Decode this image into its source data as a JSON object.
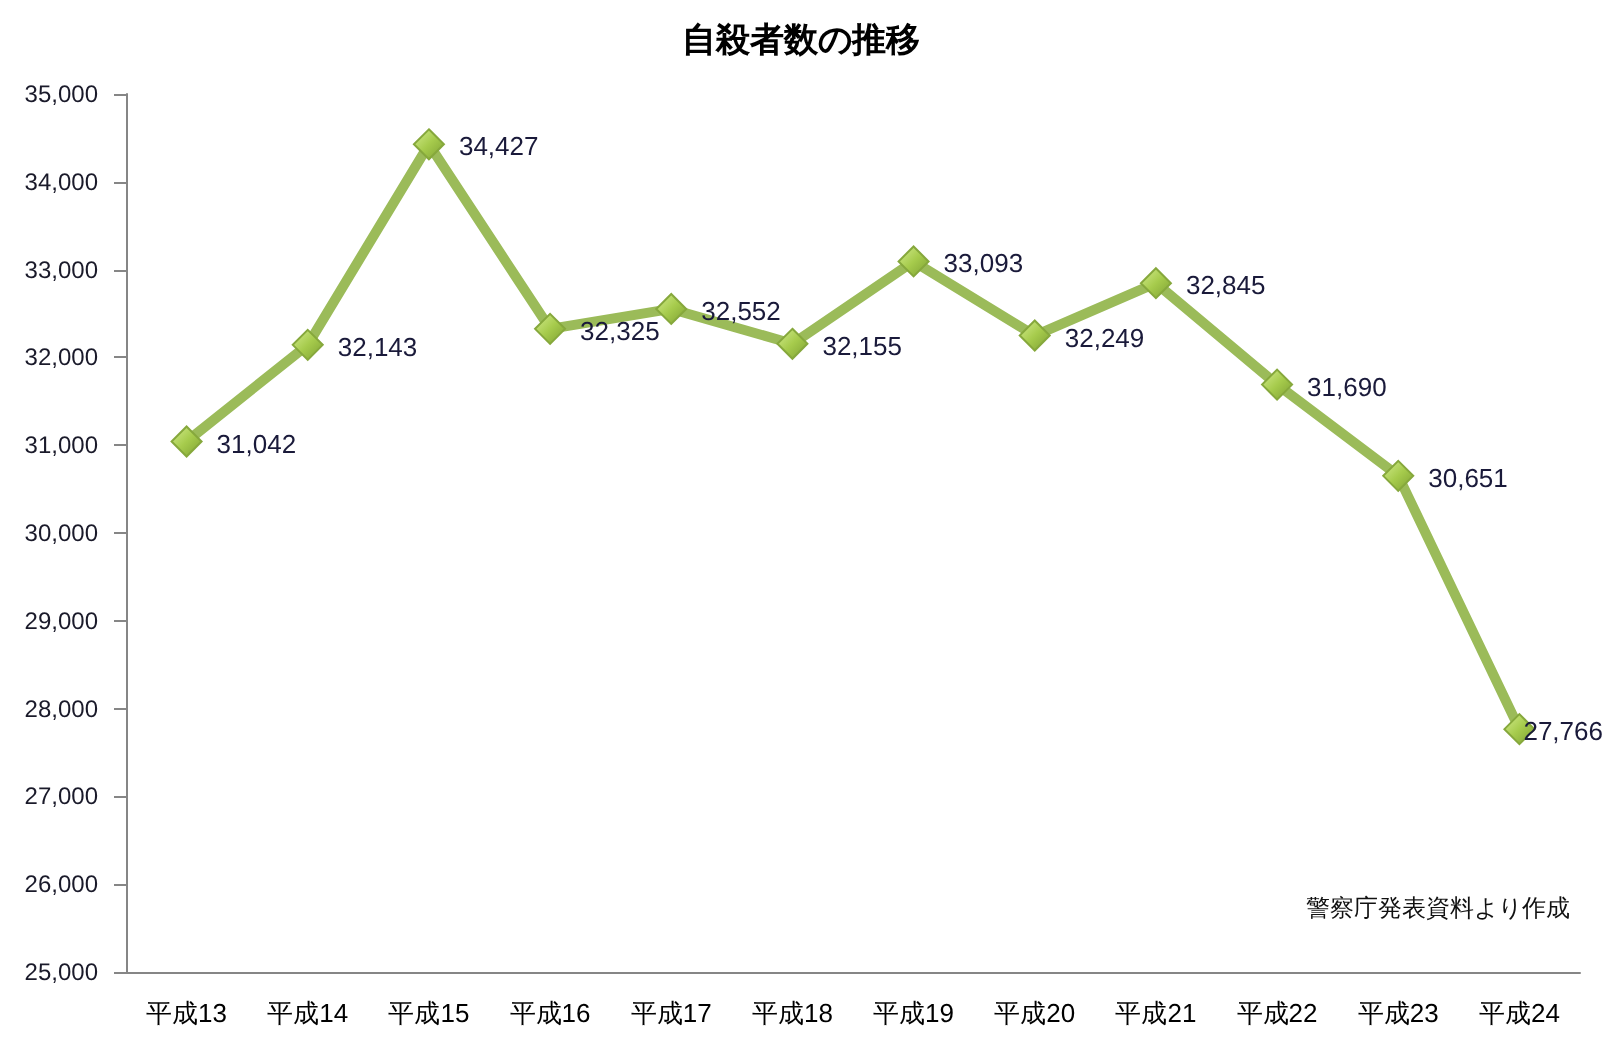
{
  "chart_data": {
    "type": "line",
    "title": "自殺者数の推移",
    "categories": [
      "平成13",
      "平成14",
      "平成15",
      "平成16",
      "平成17",
      "平成18",
      "平成19",
      "平成20",
      "平成21",
      "平成22",
      "平成23",
      "平成24"
    ],
    "series": [
      {
        "color": "#9bbb59",
        "values": [
          31042,
          32143,
          34427,
          32325,
          32552,
          32155,
          33093,
          32249,
          32845,
          31690,
          30651,
          27766
        ],
        "value_labels": [
          "31,042",
          "32,143",
          "34,427",
          "32,325",
          "32,552",
          "32,155",
          "33,093",
          "32,249",
          "32,845",
          "31,690",
          "30,651",
          "27,766"
        ]
      }
    ],
    "ylim": [
      25000,
      35000
    ],
    "yticks": [
      {
        "value": 25000,
        "label": "25,000"
      },
      {
        "value": 26000,
        "label": "26,000"
      },
      {
        "value": 27000,
        "label": "27,000"
      },
      {
        "value": 28000,
        "label": "28,000"
      },
      {
        "value": 29000,
        "label": "29,000"
      },
      {
        "value": 30000,
        "label": "30,000"
      },
      {
        "value": 31000,
        "label": "31,000"
      },
      {
        "value": 32000,
        "label": "32,000"
      },
      {
        "value": 33000,
        "label": "33,000"
      },
      {
        "value": 34000,
        "label": "34,000"
      },
      {
        "value": 35000,
        "label": "35,000"
      }
    ],
    "annotations": [
      "警察庁発表資料より作成"
    ],
    "grid": false,
    "marker": "diamond",
    "line_style": "solid"
  }
}
